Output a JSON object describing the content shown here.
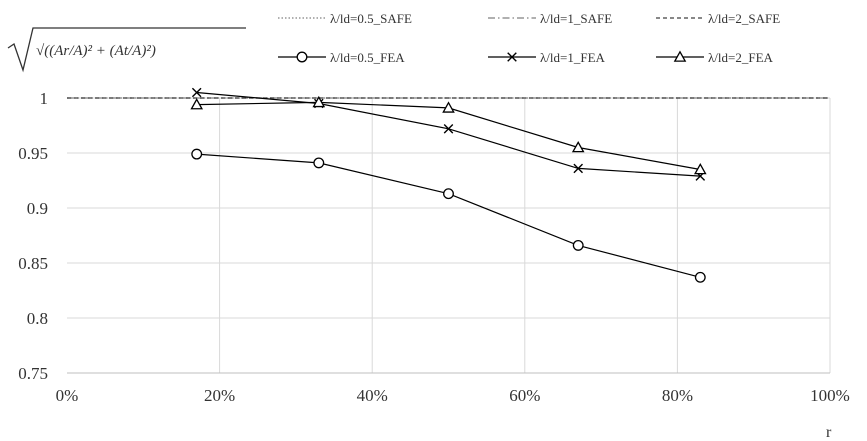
{
  "chart_data": {
    "type": "line",
    "xlabel": "r",
    "ylabel": "√((Ar/A)² + (At/A)²)",
    "x_tick_labels": [
      "0%",
      "20%",
      "40%",
      "60%",
      "80%",
      "100%"
    ],
    "y_tick_labels": [
      "0.75",
      "0.8",
      "0.85",
      "0.9",
      "0.95",
      "1"
    ],
    "xlim": [
      0,
      100
    ],
    "ylim": [
      0.75,
      1.0
    ],
    "grid": true,
    "legend_position": "top",
    "x": [
      17,
      33,
      50,
      67,
      83
    ],
    "series": [
      {
        "name": "λ/ld=0.5_SAFE",
        "style": "dotted",
        "marker": "none",
        "values": [
          1.0,
          1.0,
          1.0,
          1.0,
          1.0
        ],
        "color": "#808080"
      },
      {
        "name": "λ/ld=1_SAFE",
        "style": "dashdot",
        "marker": "none",
        "values": [
          1.0,
          1.0,
          1.0,
          1.0,
          1.0
        ],
        "color": "#808080"
      },
      {
        "name": "λ/ld=2_SAFE",
        "style": "dashed",
        "marker": "none",
        "values": [
          1.0,
          1.0,
          1.0,
          1.0,
          1.0
        ],
        "color": "#404040"
      },
      {
        "name": "λ/ld=0.5_FEA",
        "style": "solid",
        "marker": "circle",
        "values": [
          0.949,
          0.941,
          0.913,
          0.866,
          0.837
        ],
        "color": "#000000"
      },
      {
        "name": "λ/ld=1_FEA",
        "style": "solid",
        "marker": "x",
        "values": [
          1.005,
          0.995,
          0.972,
          0.936,
          0.929
        ],
        "color": "#000000"
      },
      {
        "name": "λ/ld=2_FEA",
        "style": "solid",
        "marker": "triangle",
        "values": [
          0.994,
          0.996,
          0.991,
          0.955,
          0.935
        ],
        "color": "#000000"
      }
    ]
  }
}
